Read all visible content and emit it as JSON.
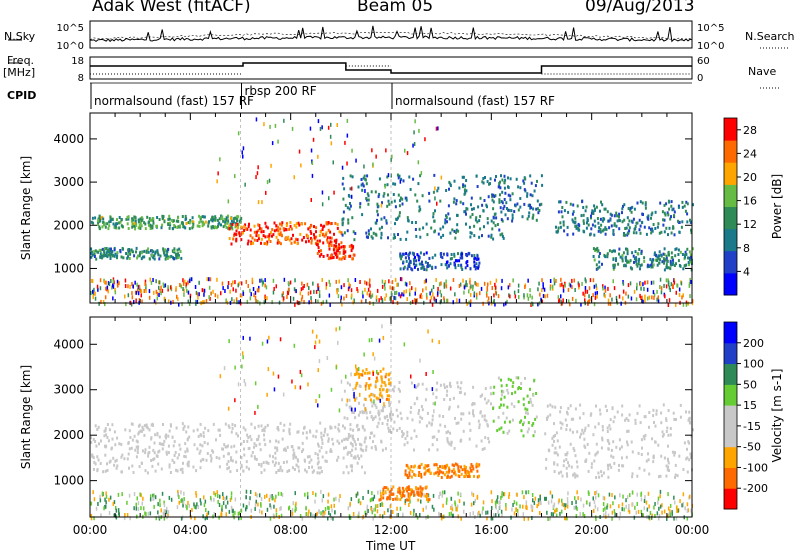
{
  "header": {
    "station": "Adak West (fitACF)",
    "beam": "Beam 05",
    "date": "09/Aug/2013"
  },
  "noise_panel": {
    "left_label": "N.Sky",
    "right_label": "N.Search",
    "ticks_left": [
      "10^5",
      "10^0"
    ],
    "ticks_right": [
      "10^5",
      "10^0"
    ]
  },
  "freq_panel": {
    "left_label_1": "Freq.",
    "left_label_2": "[MHz]",
    "right_label": "Nave",
    "ticks_left": [
      "18",
      "8"
    ],
    "ticks_right": [
      "60",
      "0"
    ]
  },
  "cpid_panel": {
    "label": "CPID",
    "modes": [
      {
        "text": "normalsound (fast) 157 RF",
        "start_ut": 0,
        "end_ut": 6
      },
      {
        "text": "rbsp 200 RF",
        "start_ut": 6,
        "end_ut": 12
      },
      {
        "text": "normalsound (fast) 157 RF",
        "start_ut": 12,
        "end_ut": 24
      }
    ]
  },
  "x_axis": {
    "label": "Time UT",
    "ticks": [
      "00:00",
      "04:00",
      "08:00",
      "12:00",
      "16:00",
      "20:00",
      "00:00"
    ]
  },
  "chart_data": [
    {
      "type": "heatmap",
      "panel": "power",
      "ylabel": "Slant Range [km]",
      "xlim_ut": [
        0,
        24
      ],
      "ylim": [
        200,
        4600
      ],
      "yticks": [
        1000,
        2000,
        3000,
        4000
      ],
      "colorbar": {
        "label": "Power [dB]",
        "ticks": [
          "28",
          "24",
          "20",
          "16",
          "12",
          "8",
          "4"
        ],
        "range": [
          0,
          30
        ],
        "colors": [
          "#0000ff",
          "#2040c8",
          "#1a7a8a",
          "#2e8b57",
          "#66bb44",
          "#ffa500",
          "#ff6a00",
          "#ff0000"
        ]
      },
      "bands": [
        {
          "ut": [
            0,
            6
          ],
          "range": [
            1950,
            2250
          ],
          "level": 14
        },
        {
          "ut": [
            0,
            3.6
          ],
          "range": [
            1250,
            1500
          ],
          "level": 12
        },
        {
          "ut": [
            5.5,
            10
          ],
          "range": [
            1600,
            2100
          ],
          "level": 26
        },
        {
          "ut": [
            9,
            10.5
          ],
          "range": [
            1250,
            1600
          ],
          "level": 28
        },
        {
          "ut": [
            10,
            16.5
          ],
          "range": [
            1700,
            3200
          ],
          "level": 10
        },
        {
          "ut": [
            12.3,
            15.5
          ],
          "range": [
            1000,
            1400
          ],
          "level": 7
        },
        {
          "ut": [
            16,
            18
          ],
          "range": [
            2100,
            3200
          ],
          "level": 9
        },
        {
          "ut": [
            18.5,
            24
          ],
          "range": [
            1800,
            2600
          ],
          "level": 10
        },
        {
          "ut": [
            20,
            24
          ],
          "range": [
            1000,
            1500
          ],
          "level": 11
        }
      ]
    },
    {
      "type": "heatmap",
      "panel": "velocity",
      "ylabel": "Slant Range [km]",
      "xlim_ut": [
        0,
        24
      ],
      "ylim": [
        200,
        4600
      ],
      "yticks": [
        1000,
        2000,
        3000,
        4000
      ],
      "colorbar": {
        "label": "Velocity [m s-1]",
        "ticks": [
          "200",
          "100",
          "50",
          "15",
          "-15",
          "-50",
          "-100",
          "-200"
        ],
        "range": [
          -250,
          250
        ],
        "colors": [
          "#ff0000",
          "#ff6a00",
          "#ffa500",
          "#c8c8c8",
          "#c8c8c8",
          "#66cc33",
          "#2e8b57",
          "#2040c8",
          "#0000ff"
        ]
      },
      "bands": [
        {
          "ut": [
            0,
            11
          ],
          "range": [
            1200,
            2300
          ],
          "value": 0
        },
        {
          "ut": [
            10,
            16
          ],
          "range": [
            1700,
            3200
          ],
          "value": 0
        },
        {
          "ut": [
            10.5,
            12
          ],
          "range": [
            2800,
            3500
          ],
          "value": -60
        },
        {
          "ut": [
            12.5,
            15.5
          ],
          "range": [
            1100,
            1400
          ],
          "value": -80
        },
        {
          "ut": [
            11.5,
            13.5
          ],
          "range": [
            600,
            900
          ],
          "value": -80
        },
        {
          "ut": [
            16,
            17.8
          ],
          "range": [
            2000,
            3300
          ],
          "value": 40
        },
        {
          "ut": [
            18,
            24
          ],
          "range": [
            1100,
            2700
          ],
          "value": 0
        }
      ]
    }
  ]
}
